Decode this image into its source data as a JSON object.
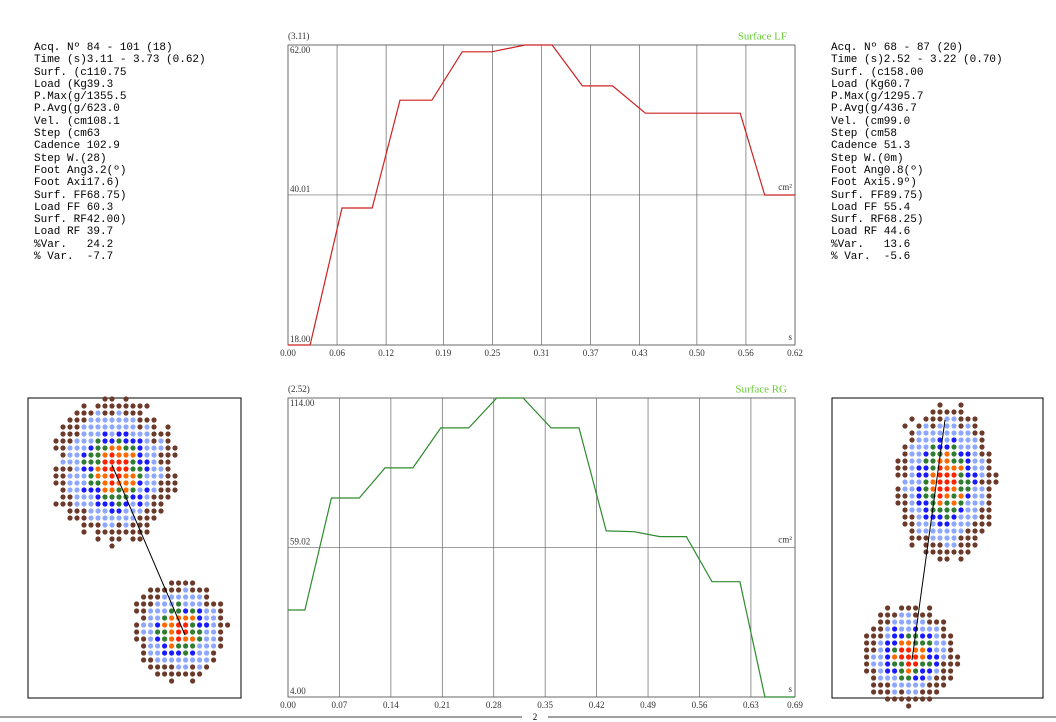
{
  "left_panel": {
    "lines": [
      "Acq. Nº 84 - 101 (18)",
      "Time (s)3.11 - 3.73 (0.62)",
      "Surf. (c110.75",
      "Load (Kg39.3",
      "P.Max(g/1355.5",
      "P.Avg(g/623.0",
      "Vel. (cm108.1",
      "Step (cm63",
      "Cadence 102.9",
      "Step W.(28)",
      "Foot Ang3.2(º)",
      "Foot Axi17.6)",
      "Surf. FF68.75)",
      "Load FF 60.3",
      "Surf. RF42.00)",
      "Load RF 39.7",
      "%Var.   24.2",
      "% Var.  -7.7"
    ]
  },
  "right_panel": {
    "lines": [
      "Acq. Nº 68 - 87 (20)",
      "Time (s)2.52 - 3.22 (0.70)",
      "Surf. (c158.00",
      "Load (Kg60.7",
      "P.Max(g/1295.7",
      "P.Avg(g/436.7",
      "Vel. (cm99.0",
      "Step (cm58",
      "Cadence 51.3",
      "Step W.(0m)",
      "Foot Ang0.8(º)",
      "Foot Axi5.9º)",
      "Surf. FF89.75)",
      "Load FF 55.4",
      "Surf. RF68.25)",
      "Load RF 44.6",
      "%Var.   13.6",
      "% Var.  -5.6"
    ]
  },
  "page_number": "2",
  "chart_data": [
    {
      "type": "line",
      "corner_label": "(3.11)",
      "y_unit": "cm²",
      "x_unit": "s",
      "x": [
        0,
        0.027,
        0.066,
        0.103,
        0.137,
        0.176,
        0.213,
        0.249,
        0.29,
        0.323,
        0.36,
        0.397,
        0.437,
        0.553,
        0.583,
        0.62
      ],
      "series": [
        {
          "name": "Surface LF",
          "color": "#cc2222",
          "values": [
            18,
            18,
            38.1,
            38.1,
            53.9,
            53.9,
            61,
            61,
            62,
            62,
            56,
            56,
            52,
            52,
            40,
            40
          ]
        }
      ],
      "xlim": [
        0,
        0.62
      ],
      "ylim": [
        18,
        62
      ],
      "xticks": [
        {
          "value": 0,
          "label": "0.00"
        },
        0.06,
        0.12,
        0.19,
        0.25,
        0.31,
        0.37,
        0.43,
        {
          "value": 0.5,
          "label": "0.50"
        },
        0.56,
        0.62
      ],
      "yticks": [
        {
          "value": 18,
          "label": "18.00"
        },
        40.01,
        {
          "value": 62,
          "label": "62.00"
        }
      ],
      "grid": true
    },
    {
      "type": "line",
      "corner_label": "(2.52)",
      "y_unit": "cm²",
      "x_unit": "s",
      "x": [
        0,
        0.023,
        0.059,
        0.097,
        0.132,
        0.17,
        0.208,
        0.246,
        0.284,
        0.32,
        0.358,
        0.396,
        0.433,
        0.471,
        0.506,
        0.542,
        0.577,
        0.615,
        0.649,
        0.69
      ],
      "series": [
        {
          "name": "Surface RG",
          "color": "#2e8b2e",
          "values": [
            36,
            36,
            77.2,
            77.2,
            88.3,
            88.3,
            103,
            103,
            114,
            114,
            103,
            103,
            65.1,
            64.8,
            63,
            63,
            46.4,
            46.4,
            4,
            4
          ]
        }
      ],
      "xlim": [
        0,
        0.69
      ],
      "ylim": [
        4,
        114
      ],
      "xticks": [
        {
          "value": 0,
          "label": "0.00"
        },
        0.07,
        0.14,
        0.21,
        0.28,
        0.35,
        0.42,
        0.49,
        0.56,
        0.63,
        0.69
      ],
      "yticks": [
        {
          "value": 4,
          "label": "4.00"
        },
        59.02,
        {
          "value": 114,
          "label": "114.00"
        }
      ],
      "grid": true
    }
  ]
}
